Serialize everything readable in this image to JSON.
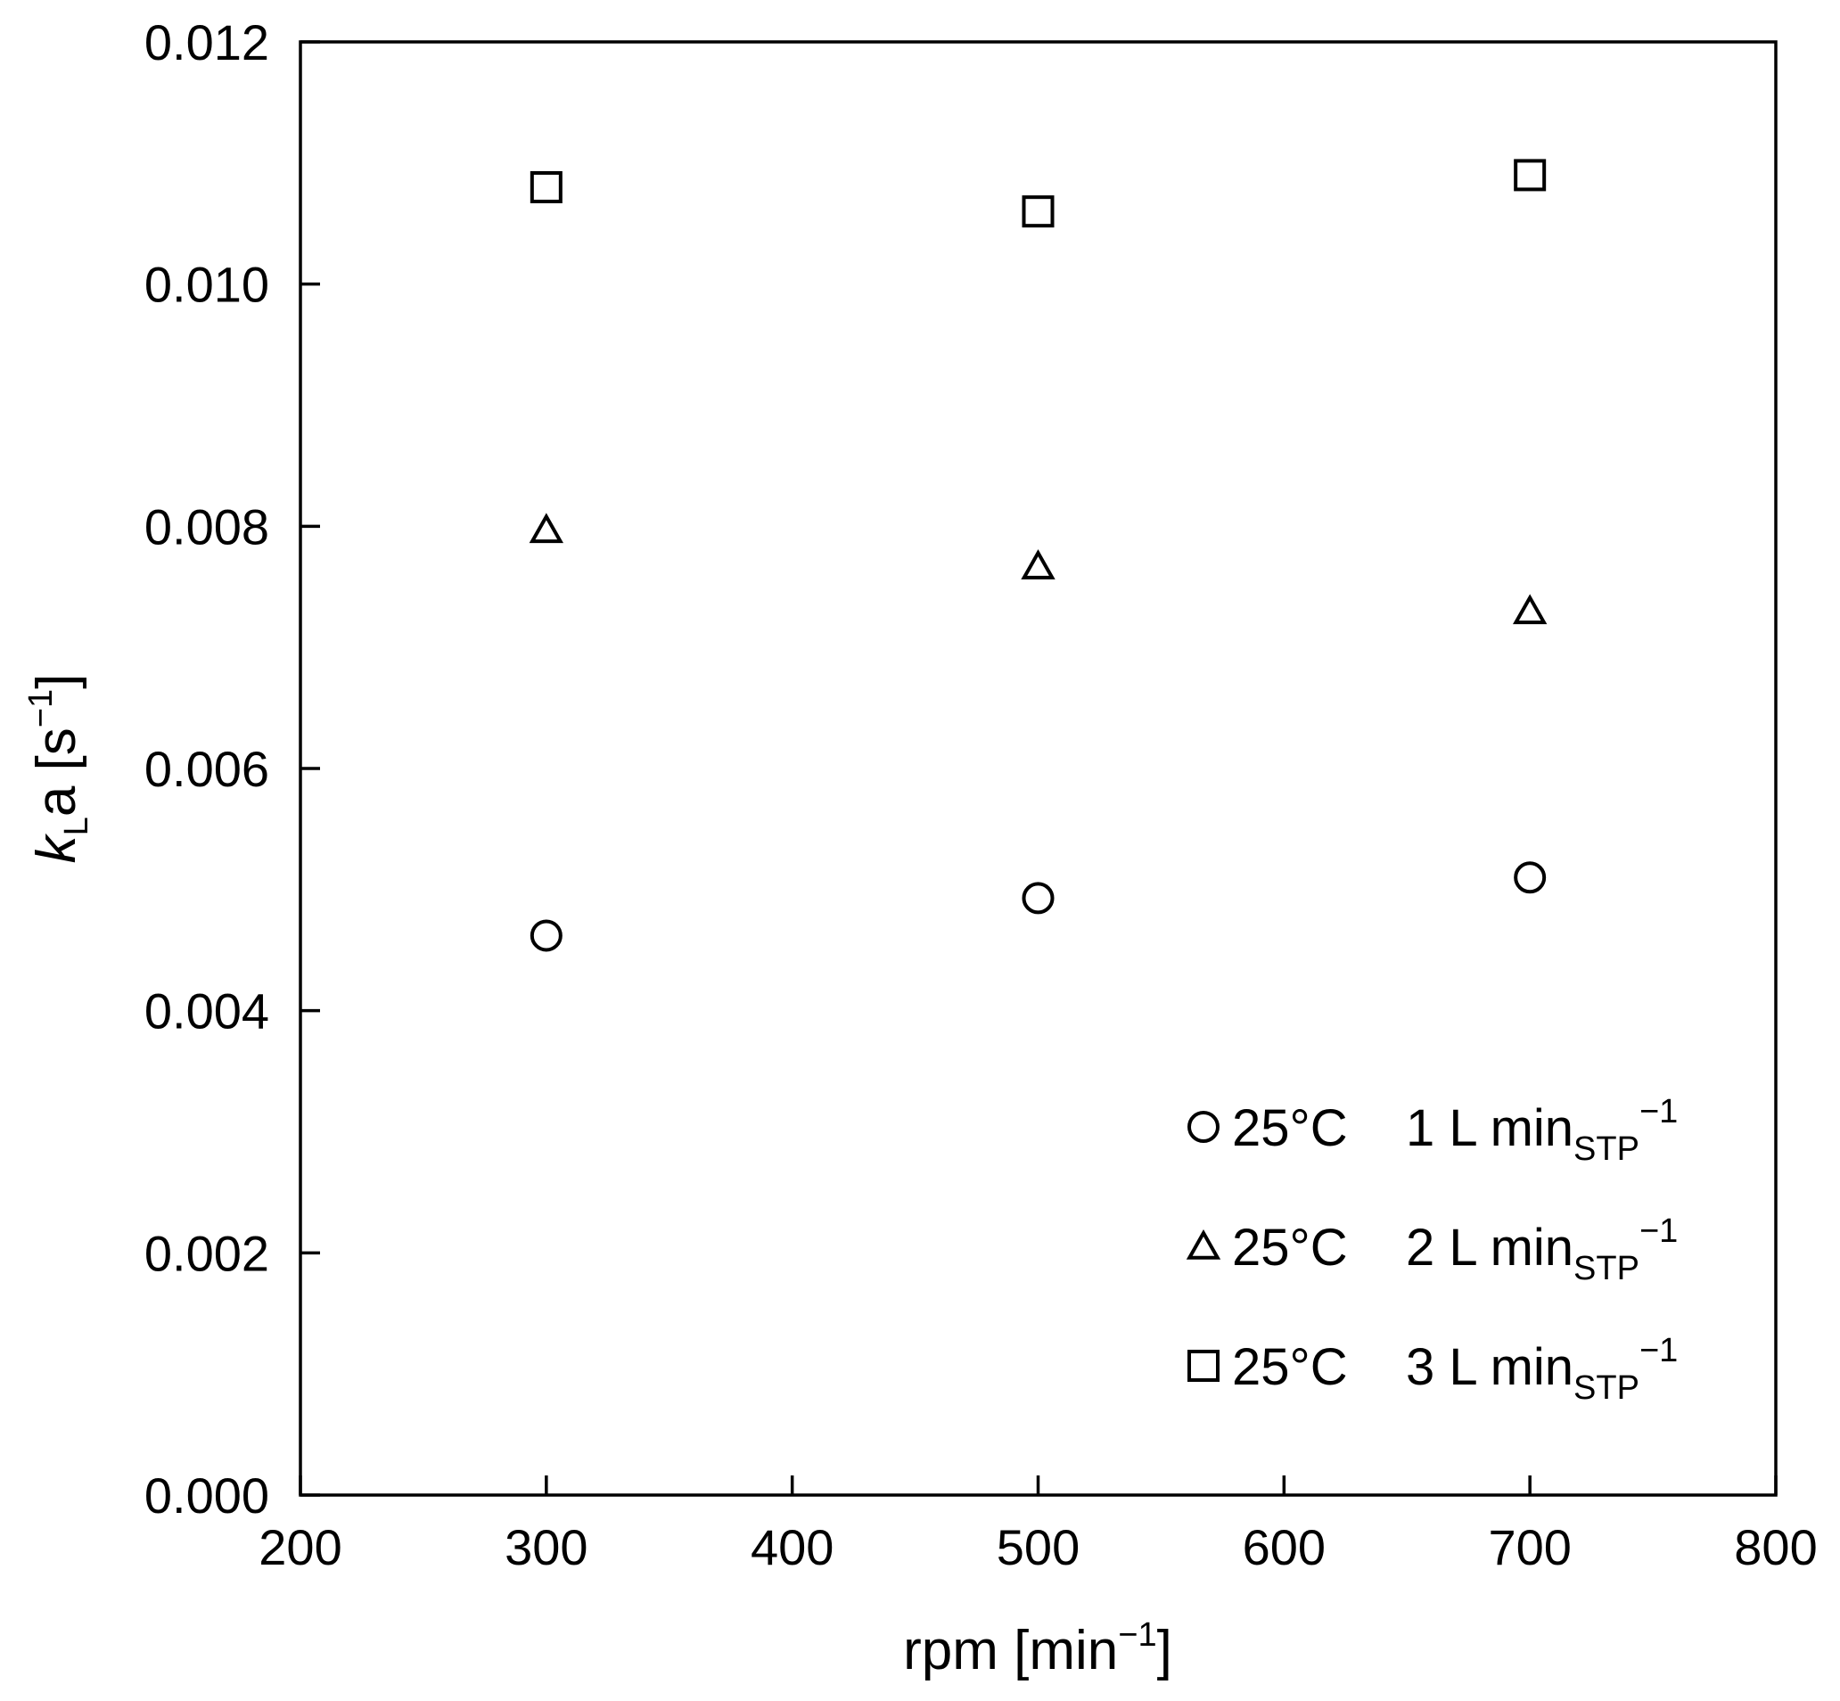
{
  "chart_data": {
    "type": "scatter",
    "xlabel": "rpm [min⁻¹]",
    "ylabel": "kLa [s⁻¹]",
    "ylabel_parts": {
      "italic": "k",
      "sub": "L",
      "base": "a [s",
      "sup": "−1",
      "close": "]"
    },
    "xlim": [
      200,
      800
    ],
    "ylim": [
      0,
      0.012
    ],
    "x_ticks": [
      200,
      300,
      400,
      500,
      600,
      700,
      800
    ],
    "y_ticks": [
      0.0,
      0.002,
      0.004,
      0.006,
      0.008,
      0.01,
      0.012
    ],
    "y_tick_labels": [
      "0.000",
      "0.002",
      "0.004",
      "0.006",
      "0.008",
      "0.010",
      "0.012"
    ],
    "grid": false,
    "legend_position": "bottom-right",
    "series": [
      {
        "name": "25°C 1 L minSTP−1",
        "name_parts": {
          "temp": "25°C",
          "flow": "1 L min",
          "sub": "STP",
          "sup": "−1"
        },
        "marker": "circle",
        "x": [
          300,
          500,
          700
        ],
        "y": [
          0.00462,
          0.00493,
          0.0051
        ]
      },
      {
        "name": "25°C 2 L minSTP−1",
        "name_parts": {
          "temp": "25°C",
          "flow": "2 L min",
          "sub": "STP",
          "sup": "−1"
        },
        "marker": "triangle",
        "x": [
          300,
          500,
          700
        ],
        "y": [
          0.00797,
          0.00767,
          0.0073
        ]
      },
      {
        "name": "25°C 3 L minSTP−1",
        "name_parts": {
          "temp": "25°C",
          "flow": "3 L min",
          "sub": "STP",
          "sup": "−1"
        },
        "marker": "square",
        "x": [
          300,
          500,
          700
        ],
        "y": [
          0.0108,
          0.0106,
          0.0109
        ]
      }
    ],
    "colors": {
      "marker": "#000000",
      "axis": "#000000",
      "background": "#ffffff"
    }
  }
}
